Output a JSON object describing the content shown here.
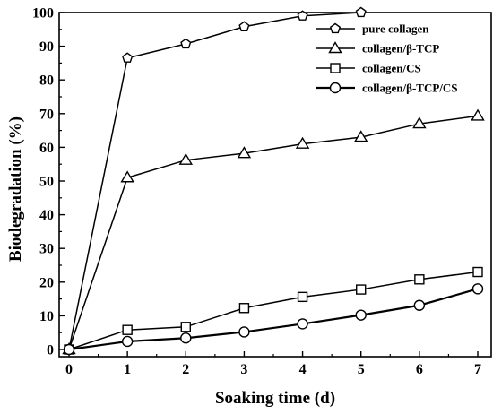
{
  "chart_data": {
    "type": "line",
    "title": "",
    "xlabel": "Soaking time (d)",
    "ylabel": "Biodegradation (%)",
    "xlim": [
      0,
      7
    ],
    "ylim": [
      0,
      100
    ],
    "x_ticks": [
      "0",
      "1",
      "2",
      "3",
      "4",
      "5",
      "6",
      "7"
    ],
    "y_ticks": [
      "0",
      "10",
      "20",
      "30",
      "40",
      "50",
      "60",
      "70",
      "80",
      "90",
      "100"
    ],
    "grid": false,
    "legend_position": "top-right",
    "series": [
      {
        "name": "pure collagen",
        "marker": "pentagon",
        "x": [
          0,
          1,
          2,
          3,
          4,
          5
        ],
        "values": [
          0,
          86.5,
          90.7,
          95.8,
          99,
          100
        ]
      },
      {
        "name": "collagen/β-TCP",
        "marker": "triangle",
        "x": [
          0,
          1,
          2,
          3,
          4,
          5,
          6,
          7
        ],
        "values": [
          0,
          51,
          56.2,
          58.2,
          61,
          63,
          67,
          69.3
        ]
      },
      {
        "name": "collagen/CS",
        "marker": "square",
        "x": [
          0,
          1,
          2,
          3,
          4,
          5,
          6,
          7
        ],
        "values": [
          0,
          5.8,
          6.7,
          12.3,
          15.6,
          17.8,
          20.8,
          23
        ]
      },
      {
        "name": "collagen/β-TCP/CS",
        "marker": "circle",
        "x": [
          0,
          1,
          2,
          3,
          4,
          5,
          6,
          7
        ],
        "values": [
          0,
          2.4,
          3.4,
          5.2,
          7.6,
          10.2,
          13.1,
          18
        ]
      }
    ]
  }
}
